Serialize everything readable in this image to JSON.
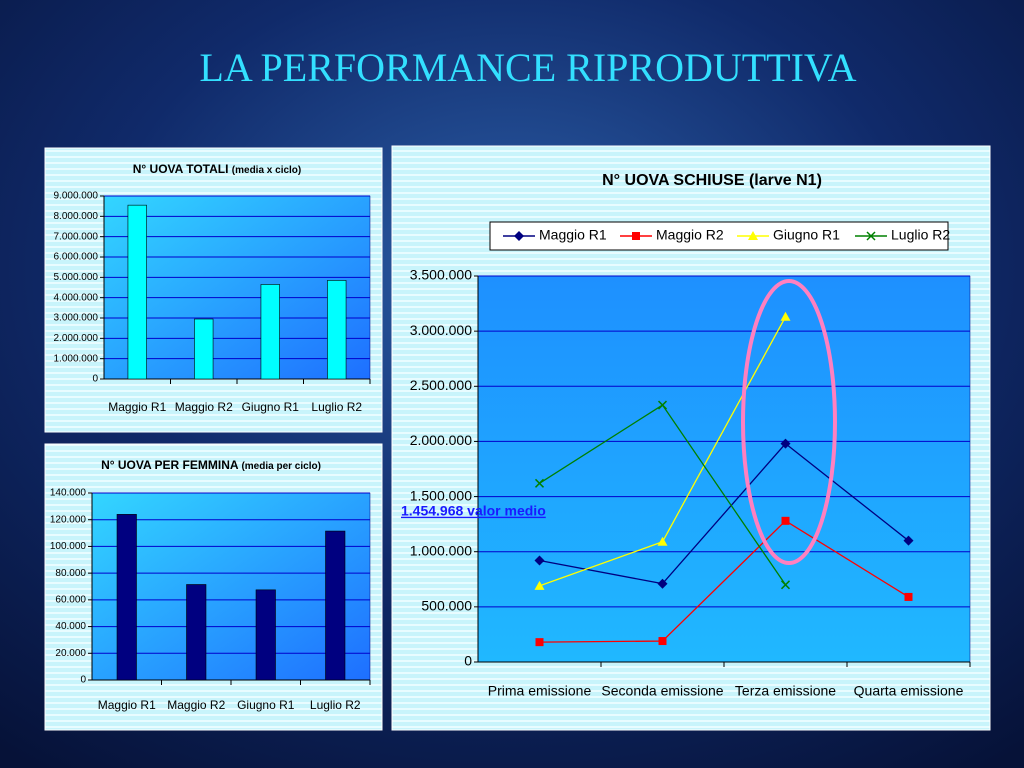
{
  "title": "LA PERFORMANCE RIPRODUTTIVA",
  "chart_data": [
    {
      "type": "bar",
      "title": "N° UOVA TOTALI",
      "subtitle": "(media x ciclo)",
      "categories": [
        "Maggio R1",
        "Maggio R2",
        "Giugno R1",
        "Luglio R2"
      ],
      "values": [
        8550000,
        2950000,
        4650000,
        4850000
      ],
      "color": "#00ffff",
      "ylim": [
        0,
        9000000
      ],
      "yticks": [
        0,
        {
          "value": 1000000,
          "label": "1.000.000"
        },
        {
          "value": 2000000,
          "label": "2.000.000"
        },
        {
          "value": 3000000,
          "label": "3.000.000"
        },
        {
          "value": 4000000,
          "label": "4.000.000"
        },
        {
          "value": 5000000,
          "label": "5.000.000"
        },
        {
          "value": 6000000,
          "label": "6.000.000"
        },
        {
          "value": 7000000,
          "label": "7.000.000"
        },
        {
          "value": 8000000,
          "label": "8.000.000"
        },
        {
          "value": 9000000,
          "label": "9.000.000"
        }
      ],
      "grid": true
    },
    {
      "type": "bar",
      "title": "N° UOVA PER FEMMINA",
      "subtitle": "(media per ciclo)",
      "categories": [
        "Maggio R1",
        "Maggio R2",
        "Giugno R1",
        "Luglio R2"
      ],
      "values": [
        124000,
        71500,
        67500,
        111500
      ],
      "color": "#000080",
      "ylim": [
        0,
        140000
      ],
      "yticks": [
        0,
        {
          "value": 20000,
          "label": "20.000"
        },
        {
          "value": 40000,
          "label": "40.000"
        },
        {
          "value": 60000,
          "label": "60.000"
        },
        {
          "value": 80000,
          "label": "80.000"
        },
        {
          "value": 100000,
          "label": "100.000"
        },
        {
          "value": 120000,
          "label": "120.000"
        },
        {
          "value": 140000,
          "label": "140.000"
        }
      ],
      "grid": true
    },
    {
      "type": "line",
      "title": "N° UOVA SCHIUSE  (larve N1)",
      "categories": [
        "Prima emissione",
        "Seconda emissione",
        "Terza emissione",
        "Quarta emissione"
      ],
      "series": [
        {
          "name": "Maggio R1",
          "color": "#000080",
          "marker": "diamond",
          "values": [
            920000,
            710000,
            1980000,
            1100000
          ]
        },
        {
          "name": "Maggio R2",
          "color": "#ff0000",
          "marker": "square",
          "values": [
            180000,
            190000,
            1280000,
            590000
          ]
        },
        {
          "name": "Giugno R1",
          "color": "#ffff00",
          "marker": "triangle",
          "values": [
            690000,
            1090000,
            3130000,
            null
          ]
        },
        {
          "name": "Luglio R2",
          "color": "#008000",
          "marker": "x",
          "values": [
            1620000,
            2330000,
            700000,
            null
          ]
        }
      ],
      "ylim": [
        0,
        3500000
      ],
      "yticks": [
        0,
        {
          "value": 500000,
          "label": "500.000"
        },
        {
          "value": 1000000,
          "label": "1.000.000"
        },
        {
          "value": 1500000,
          "label": "1.500.000"
        },
        {
          "value": 2000000,
          "label": "2.000.000"
        },
        {
          "value": 2500000,
          "label": "2.500.000"
        },
        {
          "value": 3000000,
          "label": "3.000.000"
        },
        {
          "value": 3500000,
          "label": "3.500.000"
        }
      ],
      "grid": true,
      "legend": "top",
      "annotation": "1.454.968 valor medio"
    }
  ]
}
